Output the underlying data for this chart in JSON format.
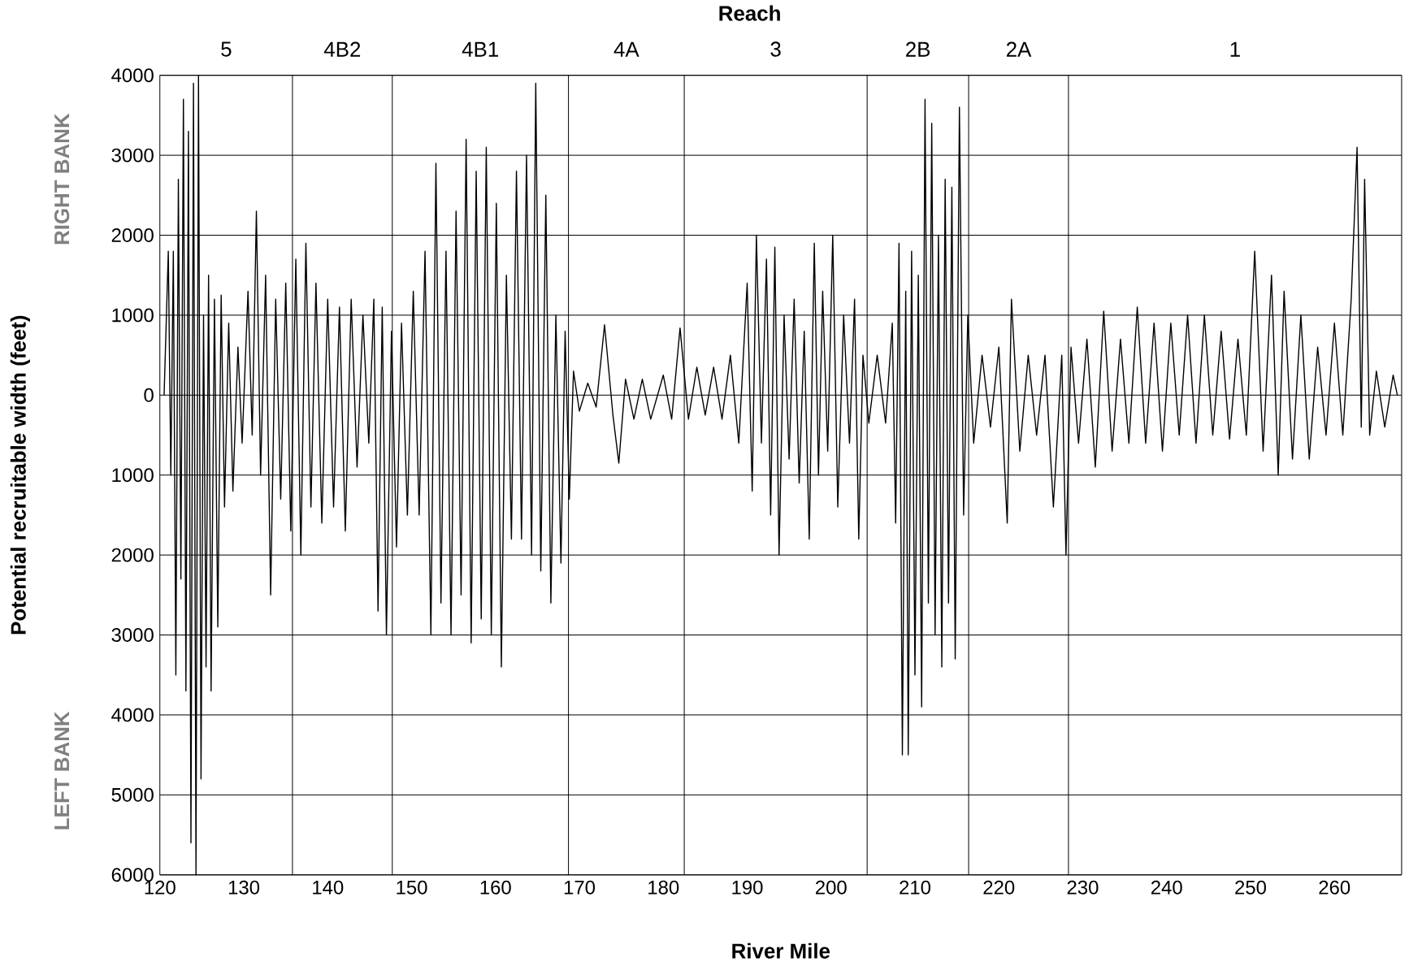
{
  "chart_data": {
    "type": "line",
    "xlabel": "River Mile",
    "ylabel": "Potential recruitable width (feet)",
    "annotations": [
      "Reach",
      "RIGHT BANK",
      "LEFT BANK"
    ],
    "bands": [
      {
        "axis": "x",
        "from": 120,
        "to": 135.8,
        "label": "5",
        "color": "#ffffff"
      },
      {
        "axis": "x",
        "from": 135.8,
        "to": 147.7,
        "label": "4B2",
        "color": "#ffffff"
      },
      {
        "axis": "x",
        "from": 147.7,
        "to": 168.7,
        "label": "4B1",
        "color": "#ffffff"
      },
      {
        "axis": "x",
        "from": 168.7,
        "to": 182.5,
        "label": "4A",
        "color": "#ffffff"
      },
      {
        "axis": "x",
        "from": 182.5,
        "to": 204.3,
        "label": "3",
        "color": "#ffffff"
      },
      {
        "axis": "x",
        "from": 204.3,
        "to": 216.4,
        "label": "2B",
        "color": "#ffffff"
      },
      {
        "axis": "x",
        "from": 216.4,
        "to": 228.3,
        "label": "2A",
        "color": "#ffffff"
      },
      {
        "axis": "x",
        "from": 228.3,
        "to": 268,
        "label": "1",
        "color": "#ffffff"
      }
    ],
    "xlim": [
      120,
      268
    ],
    "xticks": [
      120,
      130,
      140,
      150,
      160,
      170,
      180,
      190,
      200,
      210,
      220,
      230,
      240,
      250,
      260
    ],
    "ylim": [
      -6000,
      4000
    ],
    "yticks": [
      {
        "value": -6000,
        "label": "6000"
      },
      {
        "value": -5000,
        "label": "5000"
      },
      {
        "value": -4000,
        "label": "4000"
      },
      {
        "value": -3000,
        "label": "3000"
      },
      {
        "value": -2000,
        "label": "2000"
      },
      {
        "value": -1000,
        "label": "1000"
      },
      0,
      1000,
      2000,
      3000,
      4000
    ],
    "grid": "y",
    "marker": "none",
    "line_style": "solid",
    "ref_lines": [
      {
        "axis": "x",
        "value": 135.8
      },
      {
        "axis": "x",
        "value": 147.7
      },
      {
        "axis": "x",
        "value": 168.7
      },
      {
        "axis": "x",
        "value": 182.5
      },
      {
        "axis": "x",
        "value": 204.3
      },
      {
        "axis": "x",
        "value": 216.4
      },
      {
        "axis": "x",
        "value": 228.3
      }
    ],
    "series": [
      {
        "color": "#000000",
        "x": [
          120.5,
          121,
          121.3,
          121.6,
          121.9,
          122.2,
          122.5,
          122.8,
          123.1,
          123.4,
          123.7,
          124.0,
          124.3,
          124.6,
          124.9,
          125.2,
          125.5,
          125.8,
          126.1,
          126.5,
          126.9,
          127.3,
          127.7,
          128.2,
          128.7,
          129.3,
          129.8,
          130.5,
          131.0,
          131.5,
          132.0,
          132.6,
          133.2,
          133.8,
          134.4,
          135.0,
          135.6,
          136.2,
          136.8,
          137.4,
          138.0,
          138.6,
          139.3,
          140.0,
          140.7,
          141.4,
          142.1,
          142.8,
          143.5,
          144.2,
          144.9,
          145.5,
          146.0,
          146.5,
          147.0,
          147.6,
          148.2,
          148.8,
          149.5,
          150.2,
          150.9,
          151.6,
          152.3,
          152.9,
          153.5,
          154.1,
          154.7,
          155.3,
          155.9,
          156.5,
          157.1,
          157.7,
          158.3,
          158.9,
          159.5,
          160.1,
          160.7,
          161.3,
          161.9,
          162.5,
          163.1,
          163.7,
          164.3,
          164.8,
          165.4,
          166.0,
          166.6,
          167.2,
          167.8,
          168.3,
          168.8,
          169.3,
          170,
          171,
          172,
          173,
          174,
          174.7,
          175.5,
          176.5,
          177.5,
          178.5,
          180,
          181,
          182,
          183,
          184,
          185,
          186,
          187,
          188,
          189,
          190,
          190.6,
          191.1,
          191.7,
          192.3,
          192.8,
          193.3,
          193.8,
          194.4,
          195.0,
          195.6,
          196.2,
          196.8,
          197.4,
          198.0,
          198.5,
          199.0,
          199.6,
          200.2,
          200.8,
          201.5,
          202.2,
          202.8,
          203.3,
          203.8,
          204.5,
          205.5,
          206.5,
          207.3,
          207.7,
          208.1,
          208.5,
          208.9,
          209.2,
          209.6,
          210.0,
          210.4,
          210.8,
          211.2,
          211.6,
          212.0,
          212.4,
          212.8,
          213.2,
          213.6,
          214.0,
          214.4,
          214.8,
          215.3,
          215.8,
          216.3,
          217,
          218,
          219,
          220,
          221,
          221.5,
          222.5,
          223.5,
          224.5,
          225.5,
          226.5,
          227.5,
          228,
          228.6,
          229.5,
          230.5,
          231.5,
          232.5,
          233.5,
          234.5,
          235.5,
          236.5,
          237.5,
          238.5,
          239.5,
          240.5,
          241.5,
          242.5,
          243.5,
          244.5,
          245.5,
          246.5,
          247.5,
          248.5,
          249.5,
          250.5,
          251.5,
          252.5,
          253.3,
          254,
          255,
          256,
          257,
          258,
          259,
          260,
          261,
          262,
          262.7,
          263.2,
          263.6,
          264.2,
          265,
          266,
          267,
          267.5
        ],
        "values": [
          0,
          1800,
          -1000,
          1800,
          -3500,
          2700,
          -2300,
          3700,
          -3700,
          3300,
          -5600,
          3900,
          -6000,
          4000,
          -4800,
          1000,
          -3400,
          1500,
          -3700,
          1200,
          -2900,
          1250,
          -1400,
          900,
          -1200,
          600,
          -600,
          1300,
          -500,
          2300,
          -1000,
          1500,
          -2500,
          1200,
          -1300,
          1400,
          -1700,
          1700,
          -2000,
          1900,
          -1400,
          1400,
          -1600,
          1200,
          -1400,
          1100,
          -1700,
          1200,
          -900,
          1000,
          -600,
          1200,
          -2700,
          1100,
          -3000,
          800,
          -1900,
          900,
          -1500,
          1300,
          -1500,
          1800,
          -3000,
          2900,
          -2600,
          1800,
          -3000,
          2300,
          -2500,
          3200,
          -3100,
          2800,
          -2800,
          3100,
          -3000,
          2400,
          -3400,
          1500,
          -1800,
          2800,
          -1800,
          3000,
          -2000,
          3900,
          -2200,
          2500,
          -2600,
          1000,
          -2100,
          800,
          -1300,
          300,
          -200,
          150,
          -150,
          880,
          -250,
          -850,
          200,
          -300,
          200,
          -300,
          250,
          -300,
          840,
          -300,
          350,
          -250,
          350,
          -300,
          500,
          -600,
          1400,
          -1200,
          2000,
          -600,
          1700,
          -1500,
          1850,
          -2000,
          1000,
          -800,
          1200,
          -1100,
          800,
          -1800,
          1900,
          -1000,
          1300,
          -700,
          2000,
          -1400,
          1000,
          -600,
          1200,
          -1800,
          500,
          -350,
          500,
          -350,
          900,
          -1600,
          1900,
          -4500,
          1300,
          -4500,
          1800,
          -3500,
          1500,
          -3900,
          3700,
          -2600,
          3400,
          -3000,
          2000,
          -3400,
          2700,
          -2600,
          2600,
          -3300,
          3600,
          -1500,
          1000,
          -600,
          500,
          -400,
          600,
          -1600,
          1200,
          -700,
          500,
          -500,
          500,
          -1400,
          500,
          -2000,
          600,
          -600,
          700,
          -900,
          1050,
          -700,
          700,
          -600,
          1100,
          -600,
          900,
          -700,
          900,
          -500,
          1000,
          -600,
          1000,
          -500,
          800,
          -550,
          700,
          -500,
          1800,
          -700,
          1500,
          -1000,
          1300,
          -800,
          1000,
          -800,
          600,
          -500,
          900,
          -500,
          1200,
          3100,
          -400,
          2700,
          -500,
          300,
          -400,
          250,
          0
        ]
      }
    ]
  }
}
